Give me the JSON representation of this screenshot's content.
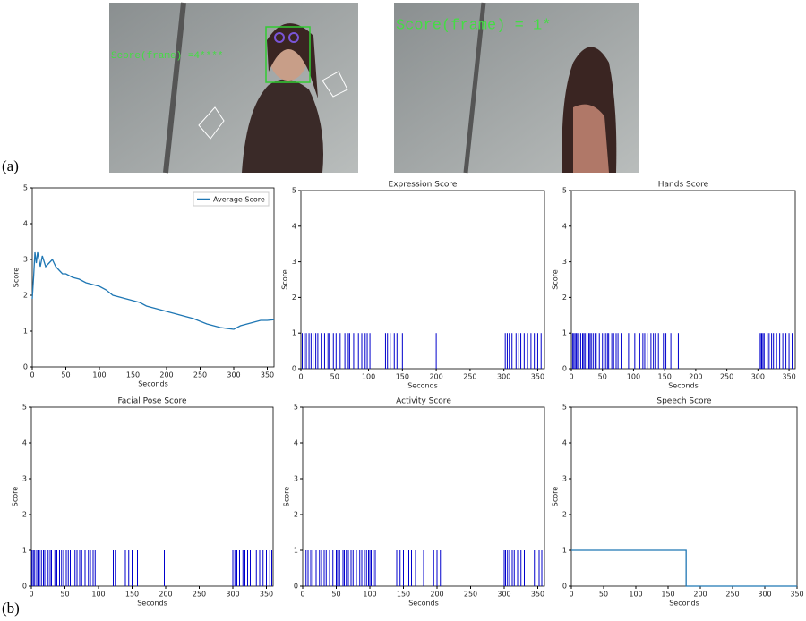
{
  "figure": {
    "panel_a_label": "(a)",
    "panel_b_label": "(b)",
    "photos": [
      {
        "overlay": "Score(frame) =4****"
      },
      {
        "overlay": "Score(frame) = 1*"
      }
    ]
  },
  "chart_data": [
    {
      "type": "line",
      "x_label": "Seconds",
      "y_label": "Score",
      "legend": "upper right",
      "x": [
        0,
        2,
        4,
        6,
        8,
        10,
        12,
        15,
        20,
        25,
        30,
        35,
        40,
        45,
        50,
        60,
        70,
        80,
        90,
        100,
        110,
        120,
        130,
        140,
        150,
        160,
        170,
        180,
        190,
        200,
        220,
        240,
        260,
        280,
        300,
        310,
        320,
        330,
        340,
        350,
        360
      ],
      "series": [
        {
          "name": "Average Score",
          "color": "#1f77b4",
          "values": [
            1.9,
            2.5,
            3.2,
            2.9,
            3.2,
            3.0,
            2.8,
            3.1,
            2.8,
            2.9,
            3.0,
            2.8,
            2.7,
            2.6,
            2.6,
            2.5,
            2.45,
            2.35,
            2.3,
            2.25,
            2.15,
            2.0,
            1.95,
            1.9,
            1.85,
            1.8,
            1.7,
            1.65,
            1.6,
            1.55,
            1.45,
            1.35,
            1.2,
            1.1,
            1.05,
            1.15,
            1.2,
            1.25,
            1.3,
            1.3,
            1.32
          ]
        }
      ],
      "xlim": [
        0,
        360
      ],
      "ylim": [
        0,
        5
      ],
      "xticks": [
        0,
        50,
        100,
        150,
        200,
        250,
        300,
        350
      ],
      "yticks": [
        0,
        1,
        2,
        3,
        4,
        5
      ]
    },
    {
      "type": "bar",
      "title": "Expression Score",
      "x_label": "Seconds",
      "y_label": "Score",
      "color": "#0000cc",
      "x": [
        2,
        5,
        8,
        12,
        15,
        18,
        22,
        25,
        30,
        35,
        40,
        42,
        48,
        52,
        58,
        65,
        70,
        72,
        78,
        85,
        90,
        95,
        98,
        102,
        125,
        128,
        132,
        138,
        142,
        150,
        200,
        302,
        305,
        308,
        312,
        318,
        322,
        325,
        330,
        335,
        340,
        345,
        350,
        355
      ],
      "values": [
        1,
        1,
        1,
        1,
        1,
        1,
        1,
        1,
        1,
        1,
        1,
        1,
        1,
        1,
        1,
        1,
        1,
        1,
        1,
        1,
        1,
        1,
        1,
        1,
        1,
        1,
        1,
        1,
        1,
        1,
        1,
        1,
        1,
        1,
        1,
        1,
        1,
        1,
        1,
        1,
        1,
        1,
        1,
        1
      ],
      "xlim": [
        0,
        360
      ],
      "ylim": [
        0,
        5
      ],
      "xticks": [
        0,
        50,
        100,
        150,
        200,
        250,
        300,
        350
      ],
      "yticks": [
        0,
        1,
        2,
        3,
        4,
        5
      ]
    },
    {
      "type": "bar",
      "title": "Hands Score",
      "x_label": "Seconds",
      "y_label": "Score",
      "color": "#0000cc",
      "x": [
        2,
        4,
        6,
        8,
        10,
        12,
        15,
        18,
        20,
        22,
        25,
        28,
        30,
        32,
        35,
        38,
        40,
        45,
        50,
        55,
        58,
        60,
        65,
        68,
        72,
        75,
        80,
        92,
        102,
        110,
        115,
        118,
        122,
        128,
        132,
        135,
        140,
        148,
        152,
        160,
        172,
        302,
        304,
        306,
        308,
        310,
        315,
        318,
        322,
        325,
        330,
        335,
        340,
        345,
        350,
        355
      ],
      "values": [
        1,
        1,
        1,
        1,
        1,
        1,
        1,
        1,
        1,
        1,
        1,
        1,
        1,
        1,
        1,
        1,
        1,
        1,
        1,
        1,
        1,
        1,
        1,
        1,
        1,
        1,
        1,
        1,
        1,
        1,
        1,
        1,
        1,
        1,
        1,
        1,
        1,
        1,
        1,
        1,
        1,
        1,
        1,
        1,
        1,
        1,
        1,
        1,
        1,
        1,
        1,
        1,
        1,
        1,
        1,
        1
      ],
      "xlim": [
        0,
        360
      ],
      "ylim": [
        0,
        5
      ],
      "xticks": [
        0,
        50,
        100,
        150,
        200,
        250,
        300,
        350
      ],
      "yticks": [
        0,
        1,
        2,
        3,
        4,
        5
      ]
    },
    {
      "type": "bar",
      "title": "Facial Pose Score",
      "x_label": "Seconds",
      "y_label": "Score",
      "color": "#0000cc",
      "x": [
        1,
        3,
        5,
        8,
        10,
        12,
        15,
        18,
        20,
        25,
        28,
        30,
        35,
        38,
        42,
        45,
        48,
        52,
        55,
        58,
        62,
        65,
        68,
        72,
        75,
        80,
        85,
        88,
        92,
        95,
        122,
        125,
        140,
        145,
        150,
        158,
        198,
        202,
        300,
        303,
        306,
        310,
        315,
        318,
        322,
        326,
        330,
        335,
        340,
        345,
        350,
        355,
        358
      ],
      "values": [
        1,
        1,
        1,
        1,
        1,
        1,
        1,
        1,
        1,
        1,
        1,
        1,
        1,
        1,
        1,
        1,
        1,
        1,
        1,
        1,
        1,
        1,
        1,
        1,
        1,
        1,
        1,
        1,
        1,
        1,
        1,
        1,
        1,
        1,
        1,
        1,
        1,
        1,
        1,
        1,
        1,
        1,
        1,
        1,
        1,
        1,
        1,
        1,
        1,
        1,
        1,
        1,
        1
      ],
      "xlim": [
        0,
        360
      ],
      "ylim": [
        0,
        5
      ],
      "xticks": [
        0,
        50,
        100,
        150,
        200,
        250,
        300,
        350
      ],
      "yticks": [
        0,
        1,
        2,
        3,
        4,
        5
      ]
    },
    {
      "type": "bar",
      "title": "Activity Score",
      "x_label": "Seconds",
      "y_label": "Score",
      "color": "#0000cc",
      "x": [
        2,
        5,
        8,
        12,
        15,
        20,
        25,
        28,
        32,
        35,
        40,
        45,
        50,
        52,
        55,
        60,
        62,
        65,
        68,
        72,
        75,
        80,
        85,
        88,
        92,
        95,
        98,
        100,
        102,
        105,
        108,
        140,
        145,
        150,
        158,
        162,
        168,
        180,
        195,
        200,
        205,
        300,
        302,
        305,
        308,
        312,
        315,
        320,
        325,
        330,
        345,
        352,
        356
      ],
      "values": [
        1,
        1,
        1,
        1,
        1,
        1,
        1,
        1,
        1,
        1,
        1,
        1,
        1,
        1,
        1,
        1,
        1,
        1,
        1,
        1,
        1,
        1,
        1,
        1,
        1,
        1,
        1,
        1,
        1,
        1,
        1,
        1,
        1,
        1,
        1,
        1,
        1,
        1,
        1,
        1,
        1,
        1,
        1,
        1,
        1,
        1,
        1,
        1,
        1,
        1,
        1,
        1,
        1
      ],
      "xlim": [
        0,
        360
      ],
      "ylim": [
        0,
        5
      ],
      "xticks": [
        0,
        50,
        100,
        150,
        200,
        250,
        300,
        350
      ],
      "yticks": [
        0,
        1,
        2,
        3,
        4,
        5
      ]
    },
    {
      "type": "line",
      "title": "Speech Score",
      "x_label": "Seconds",
      "y_label": "Score",
      "x": [
        0,
        178,
        178,
        350
      ],
      "series": [
        {
          "color": "#1f77b4",
          "values": [
            1,
            1,
            0,
            0
          ]
        }
      ],
      "xlim": [
        0,
        350
      ],
      "ylim": [
        0,
        5
      ],
      "xticks": [
        0,
        50,
        100,
        150,
        200,
        250,
        300,
        350
      ],
      "yticks": [
        0,
        1,
        2,
        3,
        4,
        5
      ]
    }
  ]
}
